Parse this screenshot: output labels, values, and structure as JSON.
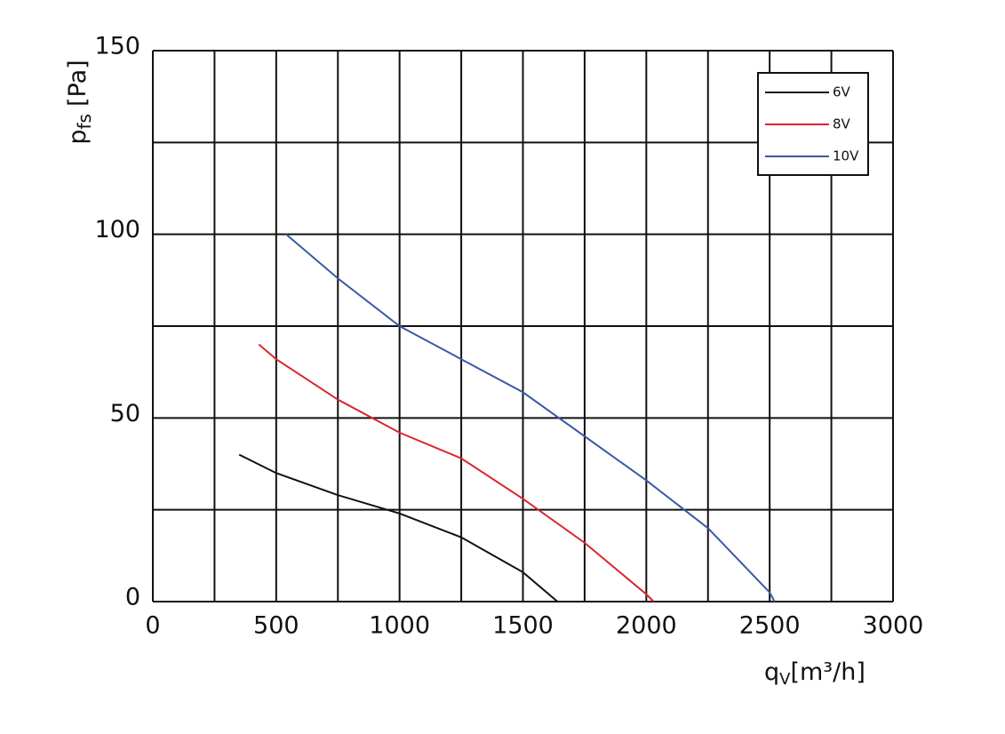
{
  "chart_data": {
    "type": "line",
    "xlabel": {
      "symbol": "q",
      "subscript": "V",
      "unit": "[m³/h]"
    },
    "ylabel": {
      "symbol": "p",
      "subscript": "fs",
      "unit": "[Pa]"
    },
    "xlim": [
      0,
      3000
    ],
    "ylim": [
      0,
      150
    ],
    "xticks": [
      0,
      500,
      1000,
      1500,
      2000,
      2500,
      3000
    ],
    "yticks": [
      0,
      50,
      100,
      150
    ],
    "xgrid": [
      0,
      250,
      500,
      750,
      1000,
      1250,
      1500,
      1750,
      2000,
      2250,
      2500,
      2750,
      3000
    ],
    "ygrid": [
      0,
      25,
      50,
      75,
      100,
      125,
      150
    ],
    "grid": true,
    "legend": "upper right",
    "series": [
      {
        "name": "6V",
        "color": "#111111",
        "x": [
          350,
          500,
          750,
          1000,
          1250,
          1500,
          1640
        ],
        "values": [
          40,
          35,
          29,
          24,
          17.5,
          8,
          0
        ]
      },
      {
        "name": "8V",
        "color": "#d9262e",
        "x": [
          430,
          500,
          750,
          1000,
          1250,
          1500,
          1750,
          2000,
          2030
        ],
        "values": [
          70,
          66,
          55,
          46,
          39,
          28,
          16,
          2,
          0
        ]
      },
      {
        "name": "10V",
        "color": "#3b58a8",
        "x": [
          540,
          750,
          1000,
          1250,
          1500,
          1750,
          2000,
          2250,
          2500,
          2520
        ],
        "values": [
          100,
          88,
          75,
          66,
          57,
          45,
          33,
          20,
          2.5,
          0
        ]
      }
    ]
  }
}
